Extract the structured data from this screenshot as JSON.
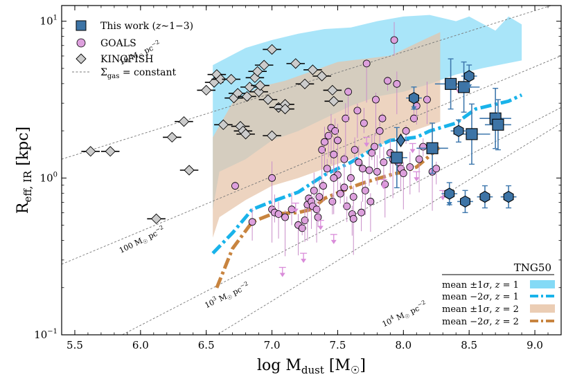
{
  "chart_data": {
    "type": "scatter",
    "xlabel": "log M_dust [M_☉]",
    "ylabel": "R_eff, IR [kpc]",
    "xlim": [
      5.4,
      9.2
    ],
    "ylim_log10": [
      -1,
      1.1
    ],
    "y_scale": "log",
    "x_ticks": [
      "5.5",
      "6.0",
      "6.5",
      "7.0",
      "7.5",
      "8.0",
      "8.5",
      "9.0"
    ],
    "x_tick_values": [
      5.5,
      6.0,
      6.5,
      7.0,
      7.5,
      8.0,
      8.5,
      9.0
    ],
    "y_ticks": [
      {
        "label": "10^-1",
        "base": "10",
        "exp": "−1",
        "value": 0.1
      },
      {
        "label": "10^0",
        "base": "10",
        "exp": "0",
        "value": 1
      },
      {
        "label": "10^1",
        "base": "10",
        "exp": "1",
        "value": 10
      }
    ],
    "legend_top": [
      {
        "name": "This work (z∼1−3)",
        "label_main": "This work (",
        "label_z": "z",
        "label_rest": "∼1−3)",
        "marker": "square",
        "color": "#3d74a6"
      },
      {
        "name": "GOALS",
        "marker": "circle",
        "color": "#dda0dd"
      },
      {
        "name": "KINGFISH",
        "marker": "diamond",
        "color": "#cccccc"
      },
      {
        "name": "Σgas = constant",
        "label_sigma": "Σ",
        "label_sub": "gas",
        "label_rest": " = constant",
        "marker": "dashed-line",
        "color": "#777777"
      }
    ],
    "legend_bottom_title": "TNG50",
    "legend_bottom": [
      {
        "name": "mean ±1σ, z=1",
        "text_a": "mean ±1",
        "text_sigma": "σ",
        "text_b": ", ",
        "text_z": "z",
        "text_c": " = 1",
        "marker": "band",
        "color": "#6fd3f5"
      },
      {
        "name": "mean −2σ, z=1",
        "text_a": "mean −2",
        "text_sigma": "σ",
        "text_b": ", ",
        "text_z": "z",
        "text_c": " = 1",
        "marker": "dashdot",
        "color": "#19b3ea"
      },
      {
        "name": "mean ±1σ, z=2",
        "text_a": "mean ±1",
        "text_sigma": "σ",
        "text_b": ", ",
        "text_z": "z",
        "text_c": " = 2",
        "marker": "band",
        "color": "#e8c4a7"
      },
      {
        "name": "mean −2σ, z=2",
        "text_a": "mean −2",
        "text_sigma": "σ",
        "text_b": ", ",
        "text_z": "z",
        "text_c": " = 2",
        "marker": "dashdot",
        "color": "#c8843f"
      }
    ],
    "sigma_lines": [
      {
        "label": "10 M☉ pc−2",
        "text_main": "10 M",
        "text_sun": "☉",
        "text_pc": " pc",
        "text_exp": "−2",
        "points": [
          [
            5.4,
            0.12
          ],
          [
            9.2,
            1.12
          ]
        ],
        "label_pos": [
          5.85,
          0.72
        ],
        "angle": -25.0
      },
      {
        "label": "100 M☉ pc−2",
        "text_main": "100 M",
        "text_sun": "☉",
        "text_pc": " pc",
        "text_exp": "−2",
        "points": [
          [
            5.4,
            -0.55
          ],
          [
            9.2,
            0.78
          ]
        ],
        "label_pos": [
          5.85,
          -0.48
        ],
        "angle": -26.0
      },
      {
        "label": "10^3 M☉ pc−2",
        "text_main": "10",
        "text_sup": "3",
        "text_rest": " M",
        "text_sun": "☉",
        "text_pc": " pc",
        "text_exp": "−2",
        "points": [
          [
            5.4,
            -1.2
          ],
          [
            9.2,
            0.45
          ]
        ],
        "label_pos": [
          6.5,
          -0.83
        ],
        "angle": -25.0
      },
      {
        "label": "10^4 M☉ pc−2",
        "text_main": "10",
        "text_sup": "4",
        "text_rest": " M",
        "text_sun": "☉",
        "text_pc": " pc",
        "text_exp": "−2",
        "points": [
          [
            6.0,
            -1.3
          ],
          [
            9.2,
            0.35
          ]
        ],
        "label_pos": [
          7.85,
          -0.95
        ],
        "angle": -25.0
      }
    ],
    "tng_band_z1": {
      "color": "#8cdcf7",
      "upper": [
        [
          6.55,
          0.72
        ],
        [
          6.8,
          0.83
        ],
        [
          7.0,
          0.88
        ],
        [
          7.2,
          0.92
        ],
        [
          7.4,
          0.95
        ],
        [
          7.6,
          0.96
        ],
        [
          7.8,
          1.0
        ],
        [
          8.0,
          1.03
        ],
        [
          8.2,
          1.04
        ],
        [
          8.4,
          1.0
        ],
        [
          8.5,
          1.03
        ],
        [
          8.7,
          0.94
        ],
        [
          8.8,
          1.03
        ],
        [
          8.9,
          0.98
        ]
      ],
      "lower": [
        [
          6.55,
          -0.2
        ],
        [
          6.6,
          0.04
        ],
        [
          6.8,
          0.12
        ],
        [
          7.0,
          0.24
        ],
        [
          7.2,
          0.3
        ],
        [
          7.4,
          0.38
        ],
        [
          7.6,
          0.46
        ],
        [
          7.8,
          0.52
        ],
        [
          8.0,
          0.55
        ],
        [
          8.2,
          0.6
        ],
        [
          8.4,
          0.66
        ],
        [
          8.6,
          0.7
        ],
        [
          8.9,
          0.75
        ]
      ]
    },
    "tng_band_z2": {
      "color": "#e6c3a7",
      "upper": [
        [
          6.55,
          0.26
        ],
        [
          6.7,
          0.48
        ],
        [
          6.9,
          0.58
        ],
        [
          7.1,
          0.62
        ],
        [
          7.3,
          0.68
        ],
        [
          7.5,
          0.74
        ],
        [
          7.7,
          0.76
        ],
        [
          7.9,
          0.78
        ],
        [
          8.0,
          0.82
        ],
        [
          8.1,
          0.86
        ],
        [
          8.2,
          0.9
        ],
        [
          8.28,
          0.93
        ]
      ],
      "lower": [
        [
          6.55,
          -0.38
        ],
        [
          6.6,
          -0.25
        ],
        [
          6.8,
          -0.14
        ],
        [
          7.0,
          -0.05
        ],
        [
          7.2,
          0.0
        ],
        [
          7.4,
          0.06
        ],
        [
          7.6,
          0.12
        ],
        [
          7.8,
          0.2
        ],
        [
          8.0,
          0.28
        ],
        [
          8.28,
          0.36
        ]
      ]
    },
    "tng_line_z1": {
      "color": "#19b3ea",
      "points": [
        [
          6.55,
          -0.48
        ],
        [
          6.7,
          -0.35
        ],
        [
          6.85,
          -0.2
        ],
        [
          7.0,
          -0.15
        ],
        [
          7.2,
          -0.09
        ],
        [
          7.4,
          0.02
        ],
        [
          7.6,
          0.1
        ],
        [
          7.8,
          0.2
        ],
        [
          7.9,
          0.24
        ],
        [
          8.1,
          0.26
        ],
        [
          8.2,
          0.3
        ],
        [
          8.4,
          0.35
        ],
        [
          8.55,
          0.44
        ],
        [
          8.8,
          0.49
        ],
        [
          8.9,
          0.53
        ]
      ]
    },
    "tng_line_z2": {
      "color": "#c8843f",
      "points": [
        [
          6.58,
          -0.7
        ],
        [
          6.7,
          -0.45
        ],
        [
          6.85,
          -0.28
        ],
        [
          7.0,
          -0.23
        ],
        [
          7.2,
          -0.22
        ],
        [
          7.3,
          -0.2
        ],
        [
          7.4,
          -0.13
        ],
        [
          7.6,
          -0.06
        ],
        [
          7.7,
          -0.03
        ],
        [
          7.9,
          0.02
        ],
        [
          8.0,
          0.04
        ],
        [
          8.1,
          0.07
        ],
        [
          8.28,
          0.2
        ]
      ]
    },
    "kingfish": {
      "color": "#cccccc",
      "edge": "#000000",
      "xerr": 0.07,
      "points": [
        [
          5.62,
          0.17
        ],
        [
          5.77,
          0.17
        ],
        [
          6.12,
          -0.26
        ],
        [
          6.24,
          0.26
        ],
        [
          6.33,
          0.36
        ],
        [
          6.37,
          0.05
        ],
        [
          6.5,
          0.56
        ],
        [
          6.56,
          0.61
        ],
        [
          6.58,
          0.66
        ],
        [
          6.61,
          0.63
        ],
        [
          6.63,
          0.34
        ],
        [
          6.69,
          0.63
        ],
        [
          6.71,
          0.51
        ],
        [
          6.74,
          0.54
        ],
        [
          6.76,
          0.33
        ],
        [
          6.78,
          0.3
        ],
        [
          6.8,
          0.28
        ],
        [
          6.81,
          0.52
        ],
        [
          6.83,
          0.58
        ],
        [
          6.87,
          0.64
        ],
        [
          6.89,
          0.68
        ],
        [
          6.9,
          0.55
        ],
        [
          6.91,
          0.59
        ],
        [
          6.94,
          0.72
        ],
        [
          6.97,
          0.5
        ],
        [
          7.0,
          0.82
        ],
        [
          7.0,
          0.27
        ],
        [
          7.05,
          0.45
        ],
        [
          7.1,
          0.47
        ],
        [
          7.1,
          0.44
        ],
        [
          7.18,
          0.73
        ],
        [
          7.25,
          0.6
        ],
        [
          7.31,
          0.69
        ],
        [
          7.38,
          0.65
        ],
        [
          7.46,
          0.56
        ],
        [
          7.47,
          0.49
        ]
      ]
    },
    "goals": {
      "color": "#dda0dd",
      "edge": "#000000",
      "points": [
        [
          6.72,
          -0.05
        ],
        [
          6.85,
          -0.28
        ],
        [
          7.0,
          -0.2
        ],
        [
          7.02,
          -0.22
        ],
        [
          7.05,
          -0.23
        ],
        [
          7.1,
          -0.25
        ],
        [
          7.15,
          -0.2
        ],
        [
          7.2,
          -0.3
        ],
        [
          7.23,
          -0.32
        ],
        [
          7.25,
          -0.27
        ],
        [
          7.27,
          -0.17
        ],
        [
          7.28,
          -0.13
        ],
        [
          7.3,
          -0.15
        ],
        [
          7.31,
          -0.18
        ],
        [
          7.32,
          -0.08
        ],
        [
          7.34,
          -0.2
        ],
        [
          7.35,
          -0.25
        ],
        [
          7.36,
          -0.12
        ],
        [
          7.38,
          0.18
        ],
        [
          7.39,
          -0.05
        ],
        [
          7.4,
          0.23
        ],
        [
          7.42,
          0.06
        ],
        [
          7.43,
          0.27
        ],
        [
          7.45,
          0.32
        ],
        [
          7.46,
          -0.15
        ],
        [
          7.47,
          0.15
        ],
        [
          7.48,
          0.3
        ],
        [
          7.5,
          0.02
        ],
        [
          7.5,
          0.24
        ],
        [
          7.52,
          -0.1
        ],
        [
          7.55,
          0.12
        ],
        [
          7.56,
          0.38
        ],
        [
          7.57,
          -0.18
        ],
        [
          7.58,
          0.55
        ],
        [
          7.6,
          0.0
        ],
        [
          7.61,
          -0.23
        ],
        [
          7.62,
          -0.26
        ],
        [
          7.63,
          0.18
        ],
        [
          7.65,
          0.43
        ],
        [
          7.66,
          0.1
        ],
        [
          7.68,
          -0.22
        ],
        [
          7.69,
          0.06
        ],
        [
          7.7,
          0.35
        ],
        [
          7.71,
          -0.08
        ],
        [
          7.72,
          0.73
        ],
        [
          7.74,
          0.05
        ],
        [
          7.75,
          -0.15
        ],
        [
          7.76,
          0.16
        ],
        [
          7.78,
          0.2
        ],
        [
          7.79,
          0.5
        ],
        [
          7.8,
          0.04
        ],
        [
          7.82,
          0.3
        ],
        [
          7.84,
          0.38
        ],
        [
          7.85,
          0.1
        ],
        [
          7.86,
          -0.04
        ],
        [
          7.88,
          0.62
        ],
        [
          7.9,
          0.16
        ],
        [
          7.92,
          0.12
        ],
        [
          7.93,
          0.88
        ],
        [
          7.95,
          0.6
        ],
        [
          7.96,
          0.1
        ],
        [
          7.98,
          0.06
        ],
        [
          8.0,
          0.03
        ],
        [
          8.02,
          0.3
        ],
        [
          8.05,
          0.07
        ],
        [
          8.08,
          0.38
        ],
        [
          8.1,
          0.46
        ],
        [
          8.12,
          0.12
        ],
        [
          8.15,
          0.2
        ],
        [
          8.18,
          0.5
        ],
        [
          8.22,
          0.04
        ],
        [
          8.25,
          0.06
        ],
        [
          7.0,
          0.0
        ],
        [
          7.62,
          -0.12
        ],
        [
          7.55,
          -0.06
        ],
        [
          7.47,
          0.0
        ]
      ],
      "upper_limits": [
        [
          7.08,
          -0.57
        ],
        [
          7.18,
          -0.16
        ],
        [
          7.24,
          -0.48
        ],
        [
          7.37,
          -0.27
        ],
        [
          7.47,
          -0.36
        ],
        [
          7.72,
          0.26
        ],
        [
          7.85,
          -0.01
        ],
        [
          8.1,
          0.04
        ],
        [
          8.3,
          -0.08
        ],
        [
          8.42,
          0.6
        ],
        [
          8.07,
          0.22
        ]
      ]
    },
    "this_work": {
      "color": "#3d74a6",
      "edge": "#000000",
      "squares": [
        [
          7.95,
          0.13,
          0.08,
          0.12
        ],
        [
          8.22,
          0.19,
          0.12,
          0.1
        ],
        [
          8.36,
          0.6,
          0.12,
          0.1
        ],
        [
          8.46,
          0.58,
          0.12,
          0.1
        ],
        [
          8.52,
          0.28,
          0.14,
          0.12
        ],
        [
          8.7,
          0.38,
          0.12,
          0.12
        ],
        [
          8.72,
          0.34,
          0.1,
          0.1
        ]
      ],
      "hexagons": [
        [
          8.08,
          0.51
        ],
        [
          8.5,
          0.65
        ],
        [
          8.42,
          0.3
        ],
        [
          8.35,
          -0.1
        ],
        [
          8.47,
          -0.15
        ],
        [
          8.62,
          -0.12
        ],
        [
          8.8,
          -0.12
        ]
      ],
      "diamond": [
        [
          7.98,
          0.24
        ]
      ],
      "hex_limits": [
        8.08,
        8.35,
        8.5
      ]
    }
  }
}
